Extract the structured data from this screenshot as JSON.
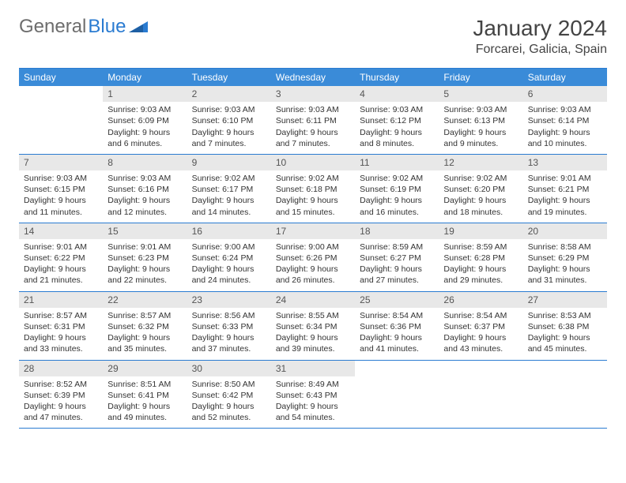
{
  "logo": {
    "word1": "General",
    "word2": "Blue"
  },
  "title": "January 2024",
  "location": "Forcarei, Galicia, Spain",
  "colors": {
    "header_bg": "#3a8bd8",
    "border": "#2a7bd1",
    "daynum_bg": "#e8e8e8",
    "text": "#333333",
    "logo_gray": "#6d6d6d",
    "logo_blue": "#2a7bd1"
  },
  "weekdays": [
    "Sunday",
    "Monday",
    "Tuesday",
    "Wednesday",
    "Thursday",
    "Friday",
    "Saturday"
  ],
  "weeks": [
    [
      null,
      {
        "n": "1",
        "sr": "Sunrise: 9:03 AM",
        "ss": "Sunset: 6:09 PM",
        "d1": "Daylight: 9 hours",
        "d2": "and 6 minutes."
      },
      {
        "n": "2",
        "sr": "Sunrise: 9:03 AM",
        "ss": "Sunset: 6:10 PM",
        "d1": "Daylight: 9 hours",
        "d2": "and 7 minutes."
      },
      {
        "n": "3",
        "sr": "Sunrise: 9:03 AM",
        "ss": "Sunset: 6:11 PM",
        "d1": "Daylight: 9 hours",
        "d2": "and 7 minutes."
      },
      {
        "n": "4",
        "sr": "Sunrise: 9:03 AM",
        "ss": "Sunset: 6:12 PM",
        "d1": "Daylight: 9 hours",
        "d2": "and 8 minutes."
      },
      {
        "n": "5",
        "sr": "Sunrise: 9:03 AM",
        "ss": "Sunset: 6:13 PM",
        "d1": "Daylight: 9 hours",
        "d2": "and 9 minutes."
      },
      {
        "n": "6",
        "sr": "Sunrise: 9:03 AM",
        "ss": "Sunset: 6:14 PM",
        "d1": "Daylight: 9 hours",
        "d2": "and 10 minutes."
      }
    ],
    [
      {
        "n": "7",
        "sr": "Sunrise: 9:03 AM",
        "ss": "Sunset: 6:15 PM",
        "d1": "Daylight: 9 hours",
        "d2": "and 11 minutes."
      },
      {
        "n": "8",
        "sr": "Sunrise: 9:03 AM",
        "ss": "Sunset: 6:16 PM",
        "d1": "Daylight: 9 hours",
        "d2": "and 12 minutes."
      },
      {
        "n": "9",
        "sr": "Sunrise: 9:02 AM",
        "ss": "Sunset: 6:17 PM",
        "d1": "Daylight: 9 hours",
        "d2": "and 14 minutes."
      },
      {
        "n": "10",
        "sr": "Sunrise: 9:02 AM",
        "ss": "Sunset: 6:18 PM",
        "d1": "Daylight: 9 hours",
        "d2": "and 15 minutes."
      },
      {
        "n": "11",
        "sr": "Sunrise: 9:02 AM",
        "ss": "Sunset: 6:19 PM",
        "d1": "Daylight: 9 hours",
        "d2": "and 16 minutes."
      },
      {
        "n": "12",
        "sr": "Sunrise: 9:02 AM",
        "ss": "Sunset: 6:20 PM",
        "d1": "Daylight: 9 hours",
        "d2": "and 18 minutes."
      },
      {
        "n": "13",
        "sr": "Sunrise: 9:01 AM",
        "ss": "Sunset: 6:21 PM",
        "d1": "Daylight: 9 hours",
        "d2": "and 19 minutes."
      }
    ],
    [
      {
        "n": "14",
        "sr": "Sunrise: 9:01 AM",
        "ss": "Sunset: 6:22 PM",
        "d1": "Daylight: 9 hours",
        "d2": "and 21 minutes."
      },
      {
        "n": "15",
        "sr": "Sunrise: 9:01 AM",
        "ss": "Sunset: 6:23 PM",
        "d1": "Daylight: 9 hours",
        "d2": "and 22 minutes."
      },
      {
        "n": "16",
        "sr": "Sunrise: 9:00 AM",
        "ss": "Sunset: 6:24 PM",
        "d1": "Daylight: 9 hours",
        "d2": "and 24 minutes."
      },
      {
        "n": "17",
        "sr": "Sunrise: 9:00 AM",
        "ss": "Sunset: 6:26 PM",
        "d1": "Daylight: 9 hours",
        "d2": "and 26 minutes."
      },
      {
        "n": "18",
        "sr": "Sunrise: 8:59 AM",
        "ss": "Sunset: 6:27 PM",
        "d1": "Daylight: 9 hours",
        "d2": "and 27 minutes."
      },
      {
        "n": "19",
        "sr": "Sunrise: 8:59 AM",
        "ss": "Sunset: 6:28 PM",
        "d1": "Daylight: 9 hours",
        "d2": "and 29 minutes."
      },
      {
        "n": "20",
        "sr": "Sunrise: 8:58 AM",
        "ss": "Sunset: 6:29 PM",
        "d1": "Daylight: 9 hours",
        "d2": "and 31 minutes."
      }
    ],
    [
      {
        "n": "21",
        "sr": "Sunrise: 8:57 AM",
        "ss": "Sunset: 6:31 PM",
        "d1": "Daylight: 9 hours",
        "d2": "and 33 minutes."
      },
      {
        "n": "22",
        "sr": "Sunrise: 8:57 AM",
        "ss": "Sunset: 6:32 PM",
        "d1": "Daylight: 9 hours",
        "d2": "and 35 minutes."
      },
      {
        "n": "23",
        "sr": "Sunrise: 8:56 AM",
        "ss": "Sunset: 6:33 PM",
        "d1": "Daylight: 9 hours",
        "d2": "and 37 minutes."
      },
      {
        "n": "24",
        "sr": "Sunrise: 8:55 AM",
        "ss": "Sunset: 6:34 PM",
        "d1": "Daylight: 9 hours",
        "d2": "and 39 minutes."
      },
      {
        "n": "25",
        "sr": "Sunrise: 8:54 AM",
        "ss": "Sunset: 6:36 PM",
        "d1": "Daylight: 9 hours",
        "d2": "and 41 minutes."
      },
      {
        "n": "26",
        "sr": "Sunrise: 8:54 AM",
        "ss": "Sunset: 6:37 PM",
        "d1": "Daylight: 9 hours",
        "d2": "and 43 minutes."
      },
      {
        "n": "27",
        "sr": "Sunrise: 8:53 AM",
        "ss": "Sunset: 6:38 PM",
        "d1": "Daylight: 9 hours",
        "d2": "and 45 minutes."
      }
    ],
    [
      {
        "n": "28",
        "sr": "Sunrise: 8:52 AM",
        "ss": "Sunset: 6:39 PM",
        "d1": "Daylight: 9 hours",
        "d2": "and 47 minutes."
      },
      {
        "n": "29",
        "sr": "Sunrise: 8:51 AM",
        "ss": "Sunset: 6:41 PM",
        "d1": "Daylight: 9 hours",
        "d2": "and 49 minutes."
      },
      {
        "n": "30",
        "sr": "Sunrise: 8:50 AM",
        "ss": "Sunset: 6:42 PM",
        "d1": "Daylight: 9 hours",
        "d2": "and 52 minutes."
      },
      {
        "n": "31",
        "sr": "Sunrise: 8:49 AM",
        "ss": "Sunset: 6:43 PM",
        "d1": "Daylight: 9 hours",
        "d2": "and 54 minutes."
      },
      null,
      null,
      null
    ]
  ]
}
